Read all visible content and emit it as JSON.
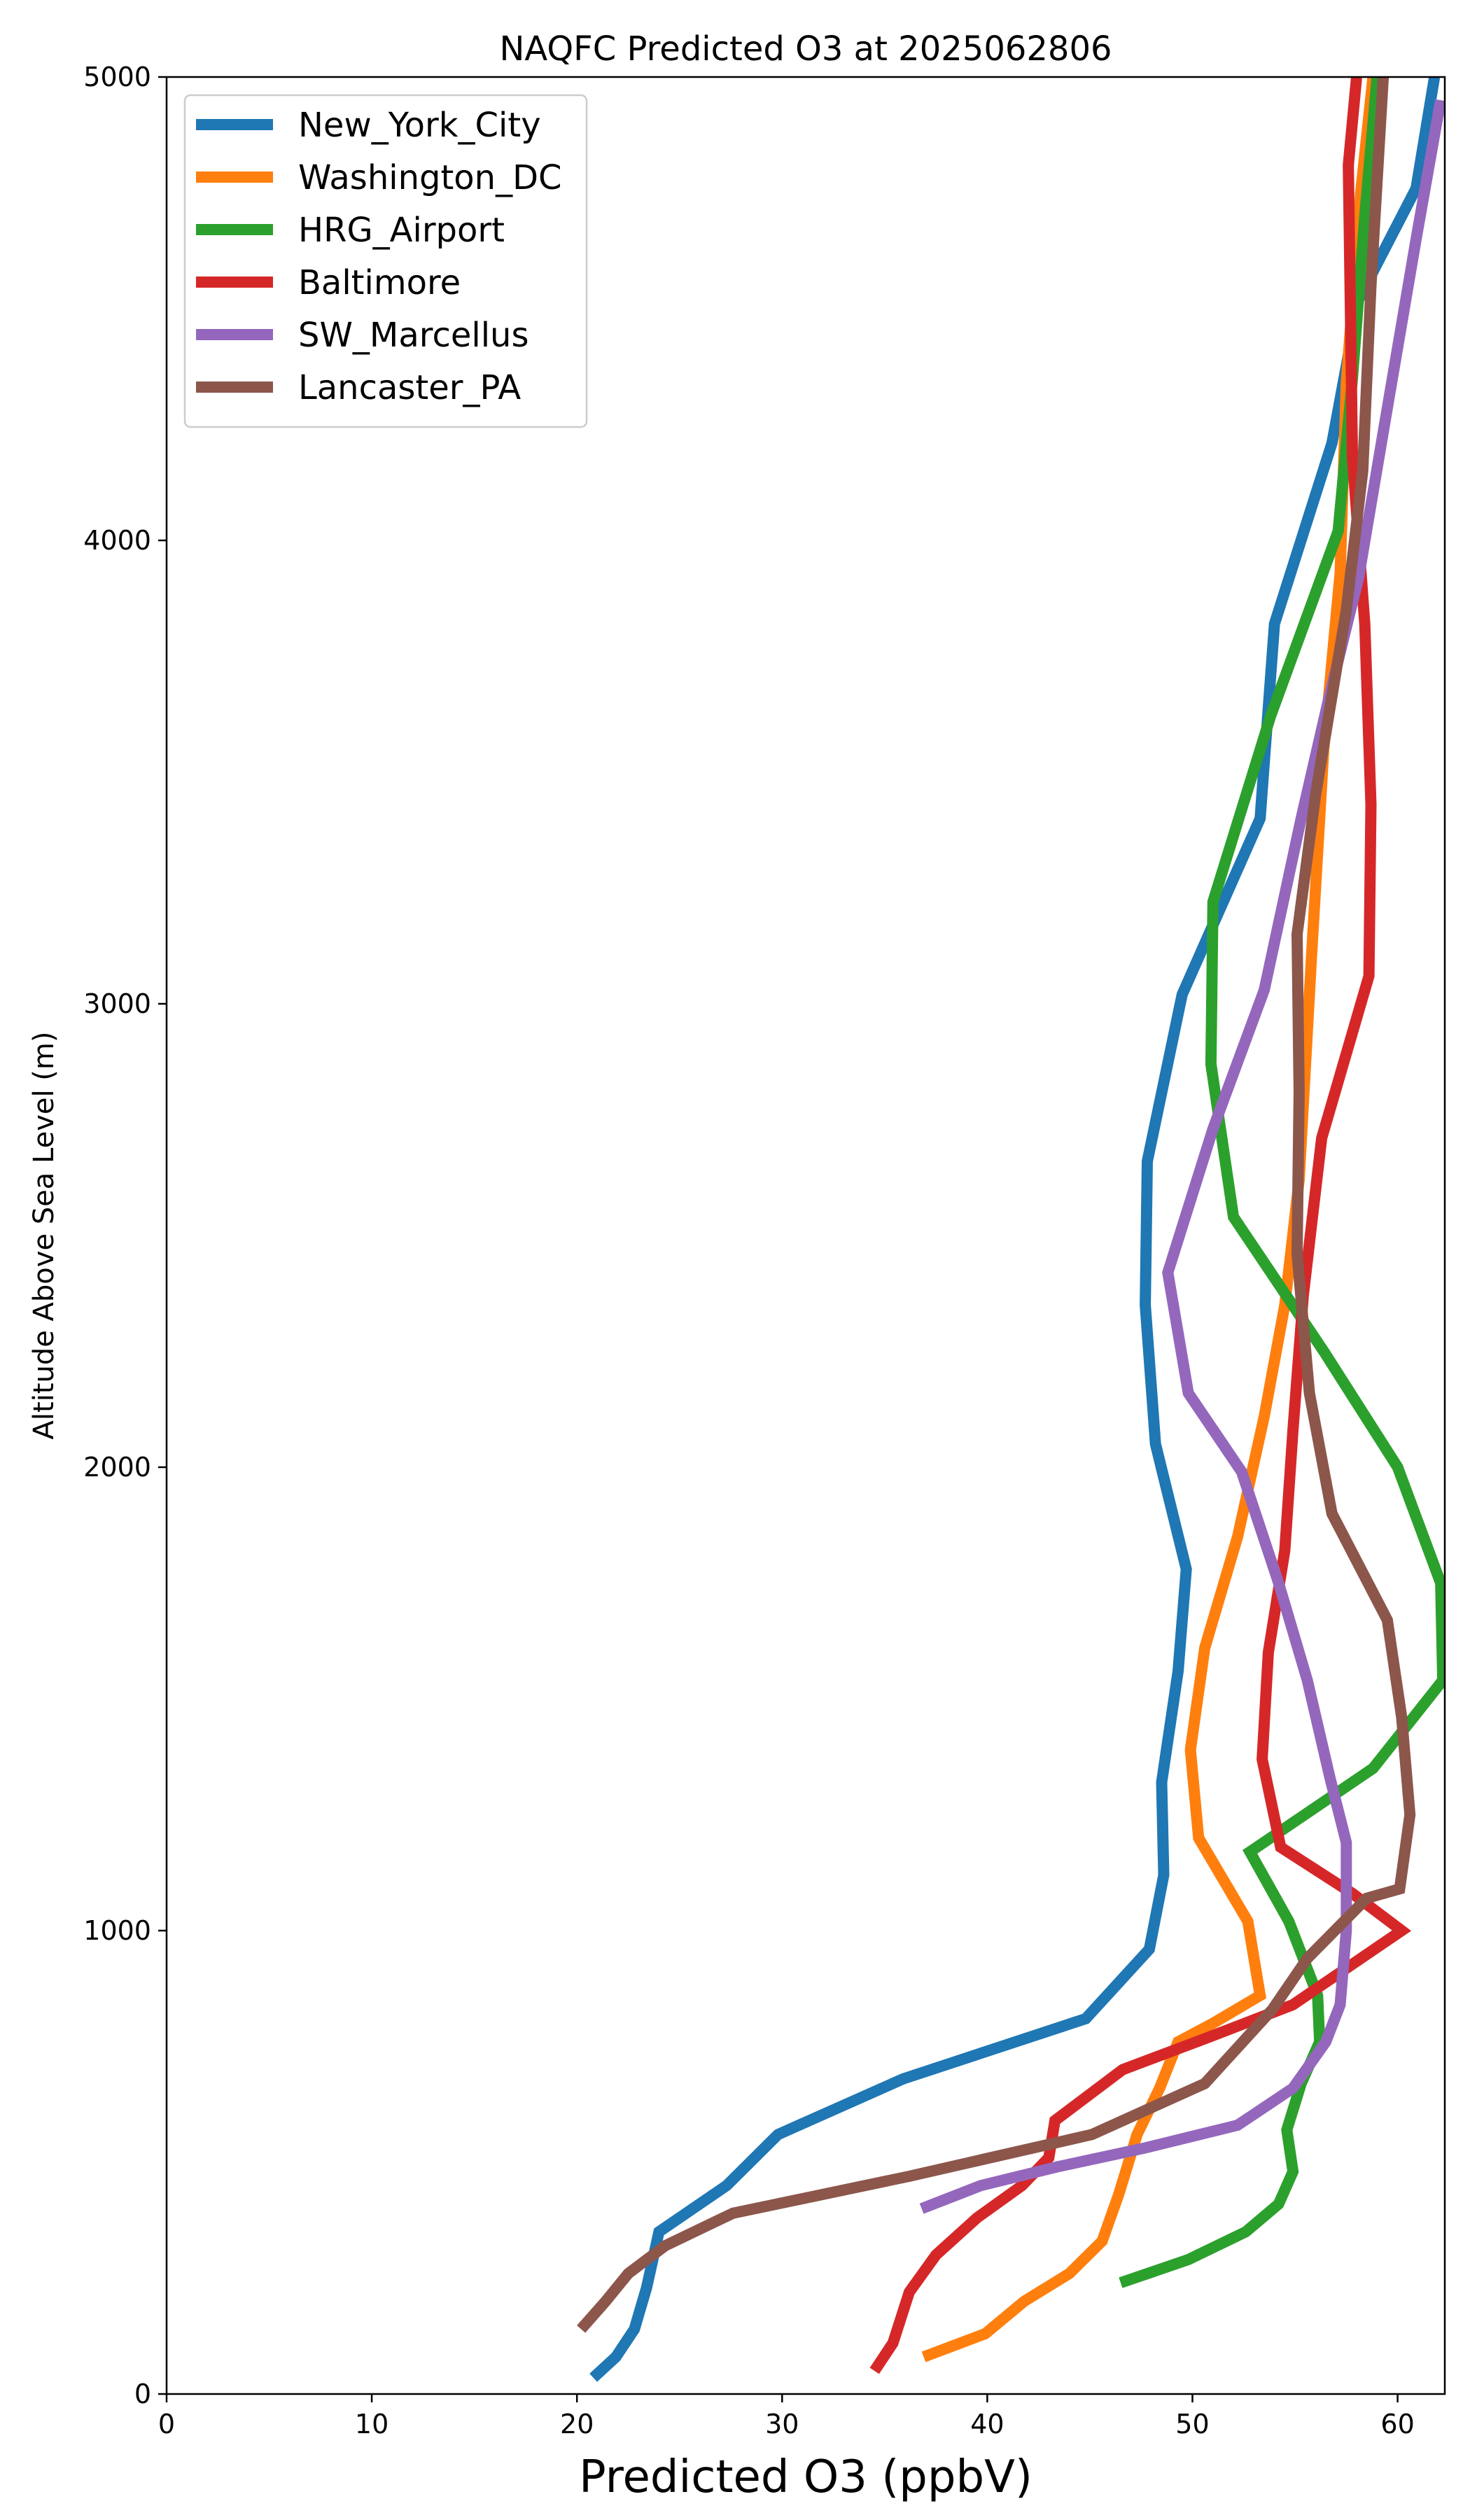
{
  "chart_data": {
    "type": "line",
    "title": "NAQFC Predicted O3 at 2025062806",
    "xlabel": "Predicted O3 (ppbV)",
    "ylabel": "Altitude Above Sea Level (m)",
    "xlim": [
      0,
      62.3
    ],
    "ylim": [
      0,
      5000
    ],
    "xticks": [
      "0",
      "10",
      "20",
      "30",
      "40",
      "50",
      "60"
    ],
    "yticks": [
      "0",
      "1000",
      "2000",
      "3000",
      "4000",
      "5000"
    ],
    "grid": false,
    "legend_position": "top-left",
    "series": [
      {
        "name": "New_York_City",
        "color": "#1f77b4",
        "points": [
          [
            20.8,
            35
          ],
          [
            21.9,
            80
          ],
          [
            22.8,
            140
          ],
          [
            23.4,
            230
          ],
          [
            24.0,
            350
          ],
          [
            27.3,
            450
          ],
          [
            29.8,
            560
          ],
          [
            35.9,
            680
          ],
          [
            44.8,
            810
          ],
          [
            47.9,
            960
          ],
          [
            48.6,
            1120
          ],
          [
            48.5,
            1320
          ],
          [
            49.3,
            1560
          ],
          [
            49.7,
            1780
          ],
          [
            48.2,
            2050
          ],
          [
            47.7,
            2350
          ],
          [
            47.8,
            2660
          ],
          [
            49.5,
            3020
          ],
          [
            53.3,
            3400
          ],
          [
            54.0,
            3820
          ],
          [
            56.8,
            4210
          ],
          [
            58.1,
            4520
          ],
          [
            60.9,
            4760
          ],
          [
            61.8,
            5000
          ]
        ]
      },
      {
        "name": "Washington_DC",
        "color": "#ff7f0e",
        "points": [
          [
            36.9,
            80
          ],
          [
            39.9,
            130
          ],
          [
            41.8,
            200
          ],
          [
            44.0,
            260
          ],
          [
            45.6,
            330
          ],
          [
            46.4,
            430
          ],
          [
            47.3,
            560
          ],
          [
            48.4,
            660
          ],
          [
            49.3,
            760
          ],
          [
            51.0,
            800
          ],
          [
            53.3,
            860
          ],
          [
            52.7,
            1020
          ],
          [
            50.3,
            1200
          ],
          [
            49.9,
            1390
          ],
          [
            50.6,
            1610
          ],
          [
            52.2,
            1850
          ],
          [
            53.5,
            2110
          ],
          [
            54.5,
            2350
          ],
          [
            55.2,
            2620
          ],
          [
            55.8,
            3100
          ],
          [
            56.4,
            3550
          ],
          [
            57.2,
            3930
          ],
          [
            57.5,
            4340
          ],
          [
            58.2,
            4750
          ],
          [
            58.8,
            5000
          ]
        ]
      },
      {
        "name": "HRG_Airport",
        "color": "#2ca02c",
        "points": [
          [
            46.5,
            240
          ],
          [
            49.8,
            290
          ],
          [
            52.6,
            350
          ],
          [
            54.2,
            410
          ],
          [
            54.9,
            480
          ],
          [
            54.6,
            570
          ],
          [
            55.3,
            670
          ],
          [
            56.2,
            760
          ],
          [
            56.1,
            860
          ],
          [
            54.7,
            1020
          ],
          [
            52.8,
            1170
          ],
          [
            58.8,
            1350
          ],
          [
            62.2,
            1540
          ],
          [
            62.1,
            1750
          ],
          [
            60.0,
            2000
          ],
          [
            56.4,
            2250
          ],
          [
            52.0,
            2540
          ],
          [
            50.9,
            2870
          ],
          [
            51.0,
            3220
          ],
          [
            53.8,
            3620
          ],
          [
            57.1,
            4020
          ],
          [
            57.8,
            4350
          ],
          [
            58.4,
            4700
          ],
          [
            59.0,
            5000
          ]
        ]
      },
      {
        "name": "Baltimore",
        "color": "#d62728",
        "points": [
          [
            34.5,
            50
          ],
          [
            35.4,
            110
          ],
          [
            36.2,
            220
          ],
          [
            37.5,
            300
          ],
          [
            39.5,
            380
          ],
          [
            41.7,
            450
          ],
          [
            43.0,
            510
          ],
          [
            43.3,
            590
          ],
          [
            46.6,
            700
          ],
          [
            50.8,
            770
          ],
          [
            54.9,
            840
          ],
          [
            60.2,
            1000
          ],
          [
            57.8,
            1080
          ],
          [
            54.3,
            1180
          ],
          [
            53.4,
            1370
          ],
          [
            53.7,
            1600
          ],
          [
            54.5,
            1820
          ],
          [
            54.9,
            2080
          ],
          [
            55.4,
            2370
          ],
          [
            56.3,
            2710
          ],
          [
            58.6,
            3060
          ],
          [
            58.7,
            3430
          ],
          [
            58.4,
            3820
          ],
          [
            57.8,
            4180
          ],
          [
            57.6,
            4810
          ],
          [
            58.0,
            5000
          ]
        ]
      },
      {
        "name": "SW_Marcellus",
        "color": "#9467bd",
        "points": [
          [
            36.8,
            400
          ],
          [
            39.7,
            450
          ],
          [
            43.4,
            490
          ],
          [
            47.6,
            530
          ],
          [
            52.2,
            580
          ],
          [
            54.9,
            660
          ],
          [
            56.5,
            760
          ],
          [
            57.2,
            840
          ],
          [
            57.5,
            1000
          ],
          [
            57.5,
            1190
          ],
          [
            56.7,
            1330
          ],
          [
            55.6,
            1540
          ],
          [
            54.2,
            1750
          ],
          [
            52.4,
            1990
          ],
          [
            49.8,
            2160
          ],
          [
            48.8,
            2420
          ],
          [
            51.0,
            2730
          ],
          [
            53.5,
            3030
          ],
          [
            55.3,
            3400
          ],
          [
            56.6,
            3650
          ],
          [
            58.1,
            3920
          ],
          [
            59.4,
            4260
          ],
          [
            60.9,
            4650
          ],
          [
            62.1,
            4950
          ]
        ]
      },
      {
        "name": "Lancaster_PA",
        "color": "#8c564b",
        "points": [
          [
            20.2,
            140
          ],
          [
            21.4,
            200
          ],
          [
            22.5,
            260
          ],
          [
            24.3,
            320
          ],
          [
            27.6,
            390
          ],
          [
            36.2,
            470
          ],
          [
            45.1,
            560
          ],
          [
            50.6,
            670
          ],
          [
            53.9,
            830
          ],
          [
            55.6,
            940
          ],
          [
            58.5,
            1070
          ],
          [
            60.1,
            1090
          ],
          [
            60.6,
            1250
          ],
          [
            60.2,
            1460
          ],
          [
            59.5,
            1670
          ],
          [
            56.8,
            1900
          ],
          [
            55.7,
            2160
          ],
          [
            55.1,
            2460
          ],
          [
            55.2,
            2810
          ],
          [
            55.1,
            3150
          ],
          [
            56.0,
            3450
          ],
          [
            57.5,
            3850
          ],
          [
            58.3,
            4150
          ],
          [
            58.7,
            4550
          ],
          [
            59.1,
            4850
          ],
          [
            59.3,
            5000
          ]
        ]
      }
    ]
  }
}
